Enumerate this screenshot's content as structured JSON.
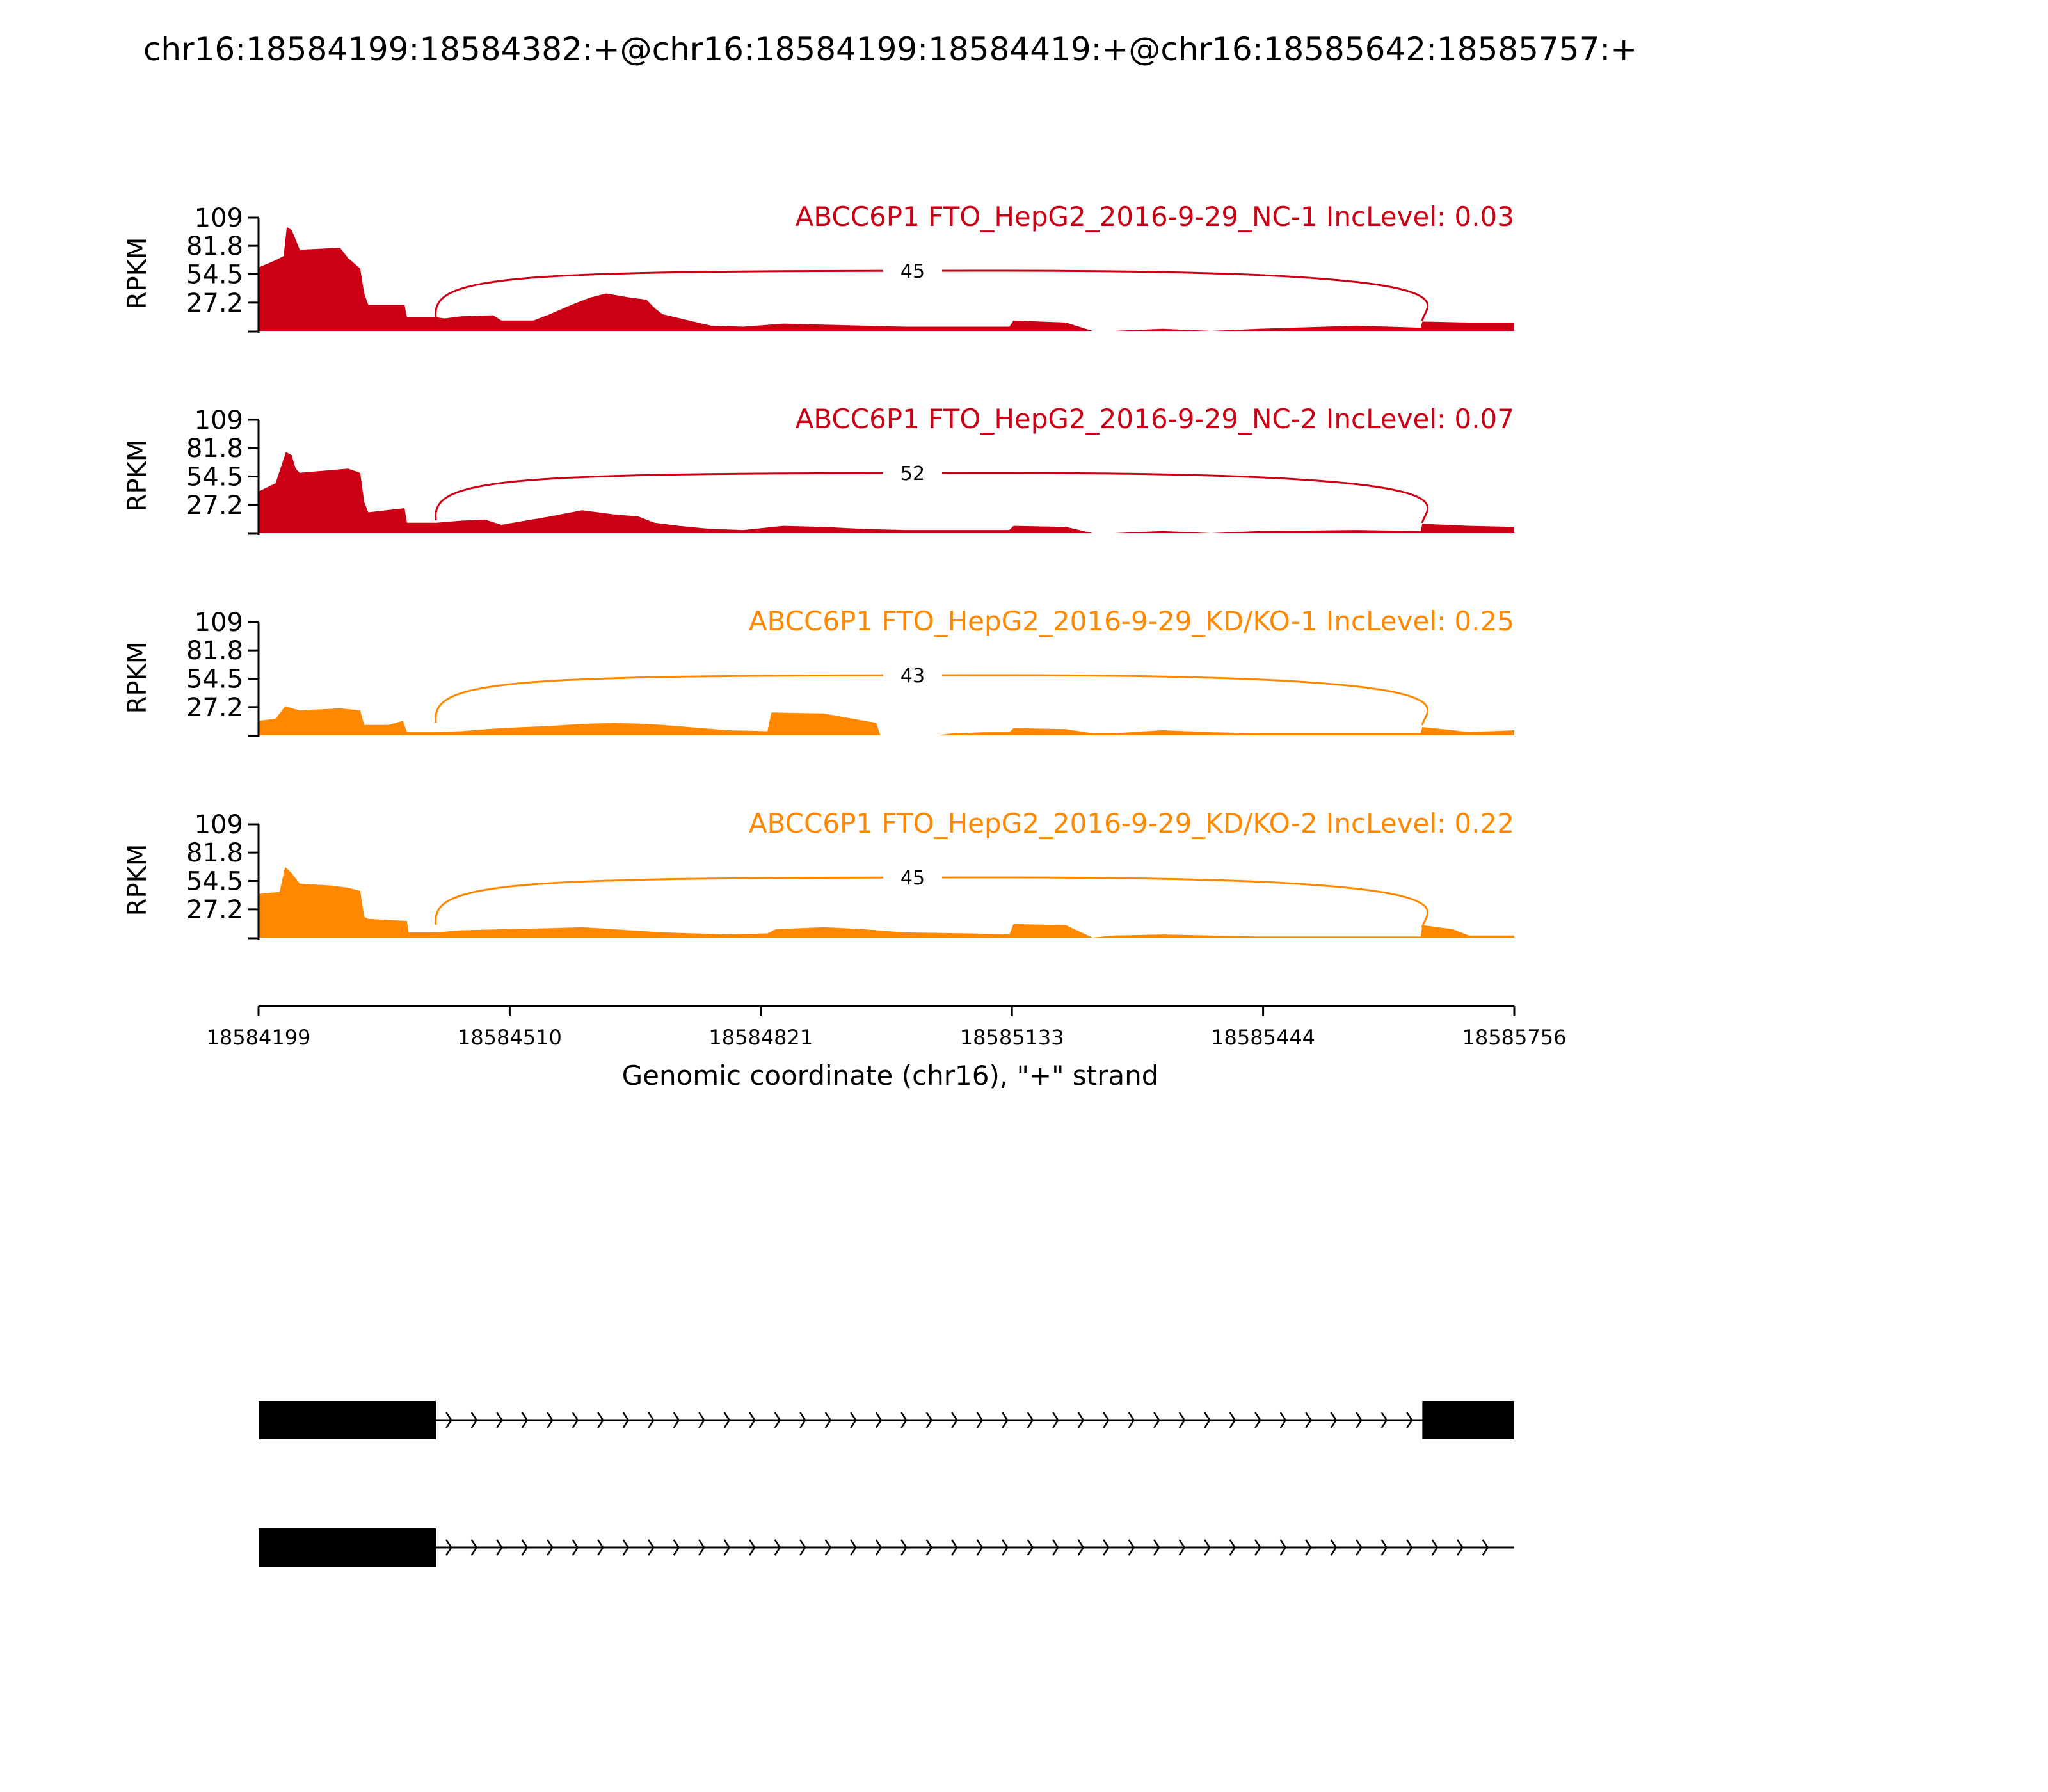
{
  "title": "chr16:18584199:18584382:+@chr16:18584199:18584419:+@chr16:18585642:18585757:+",
  "colors": {
    "nc": "#cc0015",
    "kd": "#ff8800",
    "text": "#000000"
  },
  "chart_data": {
    "type": "area",
    "ylabel": "RPKM",
    "y_ticks": [
      "109",
      "81.8",
      "54.5",
      "27.2"
    ],
    "ylim": [
      0,
      109
    ],
    "xlim": [
      18584199,
      18585756
    ],
    "x_ticks": [
      "18584199",
      "18584510",
      "18584821",
      "18585133",
      "18585444",
      "18585756"
    ],
    "xlabel": "Genomic coordinate (chr16), \"+\" strand",
    "tracks": [
      {
        "label": "ABCC6P1 FTO_HepG2_2016-9-29_NC-1 IncLevel: 0.03",
        "group": "nc",
        "junction_count": "45",
        "coverage": [
          [
            18584199,
            61
          ],
          [
            18584220,
            68
          ],
          [
            18584230,
            72
          ],
          [
            18584234,
            100
          ],
          [
            18584240,
            97
          ],
          [
            18584245,
            88
          ],
          [
            18584250,
            78
          ],
          [
            18584300,
            80
          ],
          [
            18584310,
            70
          ],
          [
            18584325,
            60
          ],
          [
            18584330,
            36
          ],
          [
            18584335,
            25
          ],
          [
            18584380,
            25
          ],
          [
            18584383,
            13
          ],
          [
            18584420,
            13
          ],
          [
            18584430,
            12
          ],
          [
            18584450,
            14
          ],
          [
            18584490,
            15
          ],
          [
            18584500,
            10
          ],
          [
            18584540,
            10
          ],
          [
            18584560,
            16
          ],
          [
            18584590,
            26
          ],
          [
            18584610,
            32
          ],
          [
            18584630,
            36
          ],
          [
            18584660,
            32
          ],
          [
            18584680,
            30
          ],
          [
            18584690,
            22
          ],
          [
            18584700,
            16
          ],
          [
            18584760,
            5
          ],
          [
            18584800,
            4
          ],
          [
            18584850,
            7
          ],
          [
            18584900,
            6
          ],
          [
            18584950,
            5
          ],
          [
            18585000,
            4
          ],
          [
            18585130,
            4
          ],
          [
            18585135,
            10
          ],
          [
            18585200,
            8
          ],
          [
            18585233,
            0
          ],
          [
            18585260,
            0
          ],
          [
            18585320,
            2
          ],
          [
            18585380,
            0
          ],
          [
            18585440,
            2
          ],
          [
            18585560,
            5
          ],
          [
            18585640,
            3
          ],
          [
            18585642,
            9
          ],
          [
            18585700,
            8
          ],
          [
            18585756,
            8
          ]
        ]
      },
      {
        "label": "ABCC6P1 FTO_HepG2_2016-9-29_NC-2 IncLevel: 0.07",
        "group": "nc",
        "junction_count": "52",
        "coverage": [
          [
            18584199,
            40
          ],
          [
            18584220,
            48
          ],
          [
            18584233,
            78
          ],
          [
            18584240,
            75
          ],
          [
            18584245,
            62
          ],
          [
            18584250,
            58
          ],
          [
            18584310,
            62
          ],
          [
            18584325,
            58
          ],
          [
            18584330,
            30
          ],
          [
            18584335,
            20
          ],
          [
            18584380,
            24
          ],
          [
            18584383,
            10
          ],
          [
            18584420,
            10
          ],
          [
            18584450,
            12
          ],
          [
            18584480,
            13
          ],
          [
            18584500,
            8
          ],
          [
            18584560,
            16
          ],
          [
            18584600,
            22
          ],
          [
            18584640,
            18
          ],
          [
            18584670,
            16
          ],
          [
            18584690,
            10
          ],
          [
            18584720,
            7
          ],
          [
            18584760,
            4
          ],
          [
            18584800,
            3
          ],
          [
            18584850,
            7
          ],
          [
            18584900,
            6
          ],
          [
            18584950,
            4
          ],
          [
            18585000,
            3
          ],
          [
            18585130,
            3
          ],
          [
            18585135,
            7
          ],
          [
            18585200,
            6
          ],
          [
            18585233,
            0
          ],
          [
            18585260,
            0
          ],
          [
            18585320,
            2
          ],
          [
            18585380,
            0
          ],
          [
            18585440,
            2
          ],
          [
            18585560,
            3
          ],
          [
            18585640,
            2
          ],
          [
            18585642,
            9
          ],
          [
            18585700,
            7
          ],
          [
            18585756,
            6
          ]
        ]
      },
      {
        "label": "ABCC6P1 FTO_HepG2_2016-9-29_KD/KO-1 IncLevel: 0.25",
        "group": "kd",
        "junction_count": "43",
        "coverage": [
          [
            18584199,
            14
          ],
          [
            18584220,
            16
          ],
          [
            18584232,
            28
          ],
          [
            18584250,
            24
          ],
          [
            18584300,
            26
          ],
          [
            18584325,
            24
          ],
          [
            18584330,
            10
          ],
          [
            18584360,
            10
          ],
          [
            18584378,
            14
          ],
          [
            18584383,
            3
          ],
          [
            18584420,
            3
          ],
          [
            18584450,
            4
          ],
          [
            18584500,
            7
          ],
          [
            18584560,
            9
          ],
          [
            18584600,
            11
          ],
          [
            18584640,
            12
          ],
          [
            18584680,
            11
          ],
          [
            18584700,
            10
          ],
          [
            18584780,
            5
          ],
          [
            18584830,
            4
          ],
          [
            18584835,
            22
          ],
          [
            18584900,
            21
          ],
          [
            18584965,
            12
          ],
          [
            18584970,
            0
          ],
          [
            18585040,
            0
          ],
          [
            18585060,
            2
          ],
          [
            18585100,
            3
          ],
          [
            18585130,
            3
          ],
          [
            18585135,
            7
          ],
          [
            18585200,
            6
          ],
          [
            18585233,
            2
          ],
          [
            18585260,
            2
          ],
          [
            18585320,
            5
          ],
          [
            18585380,
            3
          ],
          [
            18585440,
            2
          ],
          [
            18585560,
            2
          ],
          [
            18585640,
            2
          ],
          [
            18585642,
            8
          ],
          [
            18585680,
            5
          ],
          [
            18585700,
            3
          ],
          [
            18585756,
            5
          ]
        ]
      },
      {
        "label": "ABCC6P1 FTO_HepG2_2016-9-29_KD/KO-2 IncLevel: 0.22",
        "group": "kd",
        "junction_count": "45",
        "coverage": [
          [
            18584199,
            42
          ],
          [
            18584225,
            44
          ],
          [
            18584232,
            68
          ],
          [
            18584240,
            62
          ],
          [
            18584250,
            52
          ],
          [
            18584290,
            50
          ],
          [
            18584310,
            48
          ],
          [
            18584325,
            45
          ],
          [
            18584330,
            20
          ],
          [
            18584335,
            18
          ],
          [
            18584383,
            16
          ],
          [
            18584385,
            5
          ],
          [
            18584420,
            5
          ],
          [
            18584450,
            7
          ],
          [
            18584500,
            8
          ],
          [
            18584560,
            9
          ],
          [
            18584600,
            10
          ],
          [
            18584640,
            8
          ],
          [
            18584680,
            6
          ],
          [
            18584700,
            5
          ],
          [
            18584780,
            3
          ],
          [
            18584830,
            4
          ],
          [
            18584840,
            8
          ],
          [
            18584900,
            10
          ],
          [
            18584950,
            8
          ],
          [
            18585000,
            5
          ],
          [
            18585080,
            4
          ],
          [
            18585130,
            3
          ],
          [
            18585135,
            13
          ],
          [
            18585200,
            12
          ],
          [
            18585233,
            0
          ],
          [
            18585260,
            2
          ],
          [
            18585320,
            3
          ],
          [
            18585380,
            2
          ],
          [
            18585440,
            1
          ],
          [
            18585560,
            1
          ],
          [
            18585640,
            1
          ],
          [
            18585642,
            12
          ],
          [
            18585680,
            8
          ],
          [
            18585700,
            2
          ],
          [
            18585756,
            2
          ]
        ]
      }
    ],
    "isoforms": [
      {
        "exons": [
          [
            18584199,
            18584419
          ],
          [
            18585642,
            18585756
          ]
        ]
      },
      {
        "exons": [
          [
            18584199,
            18584419
          ]
        ]
      }
    ]
  }
}
